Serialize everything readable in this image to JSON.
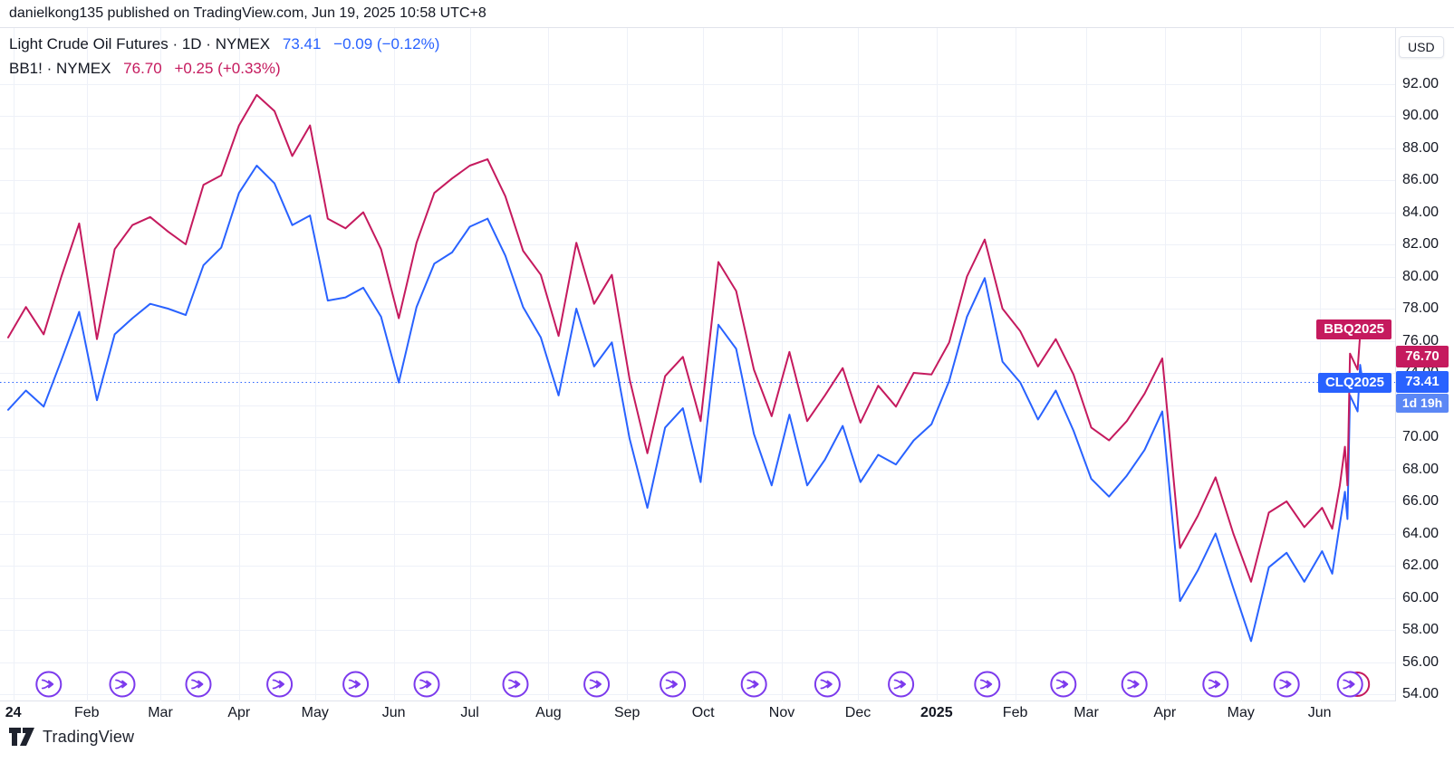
{
  "header": {
    "attribution": "danielkong135 published on TradingView.com, Jun 19, 2025 10:58 UTC+8"
  },
  "legend": {
    "rows": [
      {
        "title": "Light Crude Oil Futures · 1D · NYMEX",
        "price": "73.41",
        "change": "−0.09 (−0.12%)",
        "color": "#2962FF"
      },
      {
        "title": "BB1! · NYMEX",
        "price": "76.70",
        "change": "+0.25 (+0.33%)",
        "color": "#C51A5E"
      }
    ]
  },
  "price_axis": {
    "currency_button": "USD",
    "ticks": [
      92,
      90,
      88,
      86,
      84,
      82,
      80,
      78,
      76,
      74,
      72,
      70,
      68,
      66,
      64,
      62,
      60,
      58,
      56,
      54
    ]
  },
  "price_labels": {
    "bb": {
      "name": "BBQ2025",
      "price": "76.70",
      "bg": "#C51A5E"
    },
    "cl": {
      "name": "CLQ2025",
      "price": "73.41",
      "bg": "#2962FF",
      "countdown": "1d 19h",
      "countdown_bg": "#5b87f5"
    }
  },
  "time_axis": {
    "labels": [
      {
        "label": "24",
        "date": "2024-01-03",
        "bold": true
      },
      {
        "label": "Feb",
        "date": "2024-02-01",
        "bold": false
      },
      {
        "label": "Mar",
        "date": "2024-03-01",
        "bold": false
      },
      {
        "label": "Apr",
        "date": "2024-04-01",
        "bold": false
      },
      {
        "label": "May",
        "date": "2024-05-01",
        "bold": false
      },
      {
        "label": "Jun",
        "date": "2024-06-01",
        "bold": false
      },
      {
        "label": "Jul",
        "date": "2024-07-01",
        "bold": false
      },
      {
        "label": "Aug",
        "date": "2024-08-01",
        "bold": false
      },
      {
        "label": "Sep",
        "date": "2024-09-01",
        "bold": false
      },
      {
        "label": "Oct",
        "date": "2024-10-01",
        "bold": false
      },
      {
        "label": "Nov",
        "date": "2024-11-01",
        "bold": false
      },
      {
        "label": "Dec",
        "date": "2024-12-01",
        "bold": false
      },
      {
        "label": "2025",
        "date": "2025-01-01",
        "bold": true
      },
      {
        "label": "Feb",
        "date": "2025-02-01",
        "bold": false
      },
      {
        "label": "Mar",
        "date": "2025-03-01",
        "bold": false
      },
      {
        "label": "Apr",
        "date": "2025-04-01",
        "bold": false
      },
      {
        "label": "May",
        "date": "2025-05-01",
        "bold": false
      },
      {
        "label": "Jun",
        "date": "2025-06-01",
        "bold": false
      }
    ]
  },
  "footer": {
    "logo_text": "TradingView"
  },
  "colors": {
    "cl_blue": "#2962FF",
    "bb_crimson": "#C51A5E",
    "grid": "#eef1f8",
    "border": "#e0e3eb",
    "marker_purple": "#7C3AED",
    "text": "#131722",
    "price_line": "#2962FF"
  },
  "chart_data": {
    "type": "line",
    "title": "Light Crude Oil Futures (CLQ2025) vs BB1! (BBQ2025), NYMEX, 1D",
    "x_unit": "date",
    "x_range": [
      "2024-01-01",
      "2025-06-18"
    ],
    "ylim": [
      54,
      92
    ],
    "y_tick_step": 2,
    "currency": "USD",
    "grid": true,
    "legend_position": "top-left",
    "x": [
      "2024-01-01",
      "2024-01-08",
      "2024-01-15",
      "2024-01-22",
      "2024-01-29",
      "2024-02-05",
      "2024-02-12",
      "2024-02-19",
      "2024-02-26",
      "2024-03-04",
      "2024-03-11",
      "2024-03-18",
      "2024-03-25",
      "2024-04-01",
      "2024-04-08",
      "2024-04-15",
      "2024-04-22",
      "2024-04-29",
      "2024-05-06",
      "2024-05-13",
      "2024-05-20",
      "2024-05-27",
      "2024-06-03",
      "2024-06-10",
      "2024-06-17",
      "2024-06-24",
      "2024-07-01",
      "2024-07-08",
      "2024-07-15",
      "2024-07-22",
      "2024-07-29",
      "2024-08-05",
      "2024-08-12",
      "2024-08-19",
      "2024-08-26",
      "2024-09-02",
      "2024-09-09",
      "2024-09-16",
      "2024-09-23",
      "2024-09-30",
      "2024-10-07",
      "2024-10-14",
      "2024-10-21",
      "2024-10-28",
      "2024-11-04",
      "2024-11-11",
      "2024-11-18",
      "2024-11-25",
      "2024-12-02",
      "2024-12-09",
      "2024-12-16",
      "2024-12-23",
      "2024-12-30",
      "2025-01-06",
      "2025-01-13",
      "2025-01-20",
      "2025-01-27",
      "2025-02-03",
      "2025-02-10",
      "2025-02-17",
      "2025-02-24",
      "2025-03-03",
      "2025-03-10",
      "2025-03-17",
      "2025-03-24",
      "2025-03-31",
      "2025-04-07",
      "2025-04-14",
      "2025-04-21",
      "2025-04-28",
      "2025-05-05",
      "2025-05-12",
      "2025-05-19",
      "2025-05-26",
      "2025-06-02",
      "2025-06-06",
      "2025-06-09",
      "2025-06-11",
      "2025-06-12",
      "2025-06-13",
      "2025-06-16",
      "2025-06-17",
      "2025-06-18"
    ],
    "series": [
      {
        "name": "CLQ2025",
        "label": "Light Crude Oil Futures · 1D · NYMEX",
        "color": "#2962FF",
        "last": 73.41,
        "change": "−0.09 (−0.12%)",
        "values": [
          71.7,
          72.9,
          71.9,
          74.8,
          77.8,
          72.3,
          76.4,
          77.4,
          78.3,
          78.0,
          77.6,
          80.7,
          81.8,
          85.2,
          86.9,
          85.8,
          83.2,
          83.8,
          78.5,
          78.7,
          79.3,
          77.5,
          73.4,
          78.1,
          80.8,
          81.5,
          83.1,
          83.6,
          81.3,
          78.1,
          76.2,
          72.6,
          78.0,
          74.4,
          75.9,
          69.9,
          65.6,
          70.6,
          71.8,
          67.2,
          77.0,
          75.5,
          70.2,
          67.0,
          71.4,
          67.0,
          68.6,
          70.7,
          67.2,
          68.9,
          68.3,
          69.8,
          70.8,
          73.5,
          77.5,
          79.9,
          74.7,
          73.4,
          71.1,
          72.9,
          70.4,
          67.4,
          66.3,
          67.6,
          69.2,
          71.6,
          59.8,
          61.7,
          64.0,
          60.6,
          57.3,
          61.9,
          62.8,
          61.0,
          62.9,
          61.5,
          64.6,
          66.6,
          64.9,
          72.6,
          71.6,
          74.5,
          73.41
        ]
      },
      {
        "name": "BBQ2025",
        "label": "BB1! · NYMEX",
        "color": "#C51A5E",
        "last": 76.7,
        "change": "+0.25 (+0.33%)",
        "values": [
          76.2,
          78.1,
          76.4,
          80.0,
          83.3,
          76.1,
          81.7,
          83.2,
          83.7,
          82.8,
          82.0,
          85.7,
          86.3,
          89.4,
          91.3,
          90.3,
          87.5,
          89.4,
          83.6,
          83.0,
          84.0,
          81.7,
          77.4,
          82.1,
          85.2,
          86.1,
          86.9,
          87.3,
          85.0,
          81.6,
          80.1,
          76.3,
          82.1,
          78.3,
          80.1,
          73.6,
          69.0,
          73.8,
          75.0,
          71.0,
          80.9,
          79.1,
          74.2,
          71.3,
          75.3,
          71.0,
          72.6,
          74.3,
          70.9,
          73.2,
          71.9,
          74.0,
          73.9,
          75.9,
          80.0,
          82.3,
          78.0,
          76.6,
          74.4,
          76.1,
          73.9,
          70.6,
          69.8,
          71.0,
          72.7,
          74.9,
          63.1,
          65.1,
          67.5,
          64.0,
          61.0,
          65.3,
          66.0,
          64.4,
          65.6,
          64.3,
          67.0,
          69.4,
          67.0,
          75.2,
          74.2,
          76.4,
          76.7
        ]
      }
    ],
    "price_line": {
      "series": "CLQ2025",
      "value": 73.41,
      "style": "dotted"
    },
    "markers": {
      "name": "contract-rollover",
      "dates": [
        "2024-01-17",
        "2024-02-15",
        "2024-03-16",
        "2024-04-17",
        "2024-05-17",
        "2024-06-14",
        "2024-07-19",
        "2024-08-20",
        "2024-09-19",
        "2024-10-21",
        "2024-11-19",
        "2024-12-18",
        "2025-01-21",
        "2025-02-20",
        "2025-03-20",
        "2025-04-21",
        "2025-05-19",
        "2025-06-13"
      ],
      "overlap_last_color": "#C51A5E"
    }
  }
}
